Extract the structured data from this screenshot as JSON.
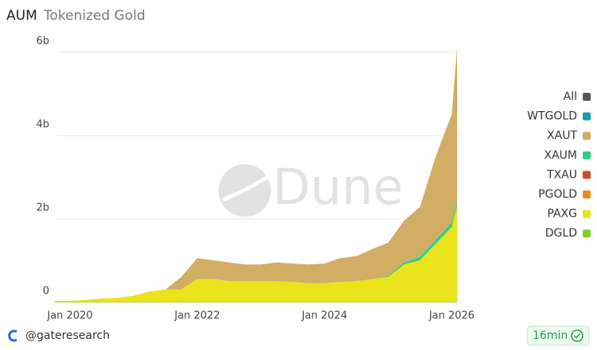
{
  "chart_data": {
    "type": "stacked-area",
    "title": "AUM",
    "subtitle": "Tokenized Gold",
    "watermark": "Dune",
    "x": [
      "2019-10",
      "2020-01",
      "2020-04",
      "2020-07",
      "2020-10",
      "2021-01",
      "2021-04",
      "2021-07",
      "2021-10",
      "2022-01",
      "2022-04",
      "2022-07",
      "2022-10",
      "2023-01",
      "2023-04",
      "2023-07",
      "2023-10",
      "2024-01",
      "2024-04",
      "2024-07",
      "2024-10",
      "2025-01",
      "2025-04",
      "2025-07",
      "2025-10",
      "2026-01",
      "2026-02"
    ],
    "xlim": [
      "2019-10",
      "2026-02"
    ],
    "xticks": [
      {
        "value": "2020-01",
        "label": "Jan 2020"
      },
      {
        "value": "2022-01",
        "label": "Jan 2022"
      },
      {
        "value": "2024-01",
        "label": "Jan 2024"
      },
      {
        "value": "2026-01",
        "label": "Jan 2026"
      }
    ],
    "ylim": [
      0,
      6300000000
    ],
    "yticks": [
      0,
      {
        "value": 2000000000,
        "label": "2b"
      },
      {
        "value": 4000000000,
        "label": "4b"
      },
      {
        "value": 6000000000,
        "label": "6b"
      }
    ],
    "grid": true,
    "legend": "right",
    "series": [
      {
        "name": "All",
        "color": "#555555",
        "values": [
          0,
          0,
          0,
          0,
          0,
          0,
          0,
          0,
          0,
          0,
          0,
          0,
          0,
          0,
          0,
          0,
          0,
          0,
          0,
          0,
          0,
          0,
          0,
          0,
          0,
          0,
          0
        ]
      },
      {
        "name": "WTGOLD",
        "color": "#1a9bb0",
        "values": [
          0,
          0,
          0,
          0,
          0,
          0,
          0,
          0,
          0,
          0,
          0,
          0,
          0,
          0,
          0,
          0,
          0,
          0,
          0,
          0,
          0,
          0,
          0,
          0,
          0,
          0,
          0
        ]
      },
      {
        "name": "XAUT",
        "color": "#d2ad64",
        "values": [
          0,
          0,
          0,
          0,
          0,
          0,
          0,
          0,
          300000000,
          500000000,
          450000000,
          450000000,
          400000000,
          400000000,
          450000000,
          440000000,
          450000000,
          470000000,
          570000000,
          600000000,
          720000000,
          800000000,
          1000000000,
          1200000000,
          2000000000,
          2600000000,
          3700000000
        ]
      },
      {
        "name": "XAUM",
        "color": "#2fcf8a",
        "values": [
          0,
          0,
          0,
          0,
          0,
          0,
          0,
          0,
          0,
          0,
          0,
          0,
          0,
          0,
          0,
          0,
          0,
          0,
          0,
          0,
          0,
          20000000,
          50000000,
          80000000,
          100000000,
          100000000,
          100000000
        ]
      },
      {
        "name": "TXAU",
        "color": "#c8502a",
        "values": [
          0,
          0,
          0,
          0,
          0,
          0,
          0,
          0,
          0,
          0,
          0,
          0,
          0,
          0,
          0,
          0,
          0,
          0,
          0,
          0,
          0,
          0,
          0,
          0,
          0,
          0,
          0
        ]
      },
      {
        "name": "PGOLD",
        "color": "#e98a1a",
        "values": [
          0,
          0,
          0,
          0,
          0,
          0,
          0,
          0,
          0,
          0,
          0,
          0,
          0,
          0,
          0,
          0,
          0,
          0,
          0,
          0,
          0,
          0,
          0,
          0,
          0,
          0,
          0
        ]
      },
      {
        "name": "PAXG",
        "color": "#eae41a",
        "values": [
          20000000,
          30000000,
          50000000,
          80000000,
          100000000,
          150000000,
          250000000,
          300000000,
          300000000,
          550000000,
          550000000,
          500000000,
          500000000,
          500000000,
          500000000,
          480000000,
          450000000,
          450000000,
          480000000,
          500000000,
          550000000,
          600000000,
          900000000,
          1000000000,
          1400000000,
          1800000000,
          2300000000
        ]
      },
      {
        "name": "DGLD",
        "color": "#7ed321",
        "values": [
          10000000,
          10000000,
          10000000,
          10000000,
          10000000,
          10000000,
          10000000,
          10000000,
          10000000,
          10000000,
          10000000,
          10000000,
          10000000,
          10000000,
          10000000,
          10000000,
          10000000,
          10000000,
          10000000,
          10000000,
          10000000,
          10000000,
          10000000,
          10000000,
          10000000,
          10000000,
          10000000
        ]
      }
    ]
  },
  "footer": {
    "handle": "@gateresearch",
    "badge": "16min"
  }
}
